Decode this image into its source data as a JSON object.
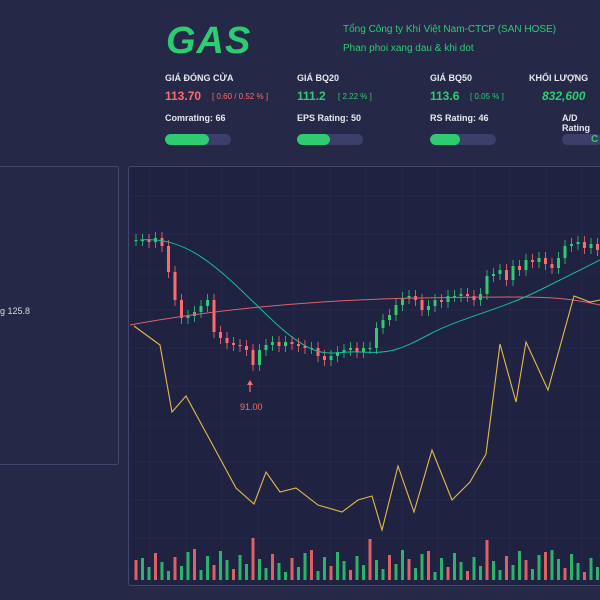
{
  "header": {
    "ticker": "GAS",
    "company": "Tổng Công ty Khí Việt Nam-CTCP (SAN HOSE)",
    "sector": "Phan phoi xang dau & khi dot"
  },
  "metrics": [
    {
      "label": "GIÁ ĐÓNG CỬA",
      "value": "113.70",
      "change": "[ 0.60 / 0.52 % ]",
      "color": "#ff6b6b"
    },
    {
      "label": "GIÁ BQ20",
      "value": "111.2",
      "change": "[ 2.22 % ]",
      "color": "#2ecc71"
    },
    {
      "label": "GIÁ BQ50",
      "value": "113.6",
      "change": "[ 0.05 % ]",
      "color": "#2ecc71"
    },
    {
      "label": "KHỐI LƯỢNG",
      "value": "832,600",
      "change": "",
      "color": "#2ecc71"
    }
  ],
  "ratings": [
    {
      "label": "Comrating: 66",
      "level": 0.66
    },
    {
      "label": "EPS Rating: 50",
      "level": 0.5
    },
    {
      "label": "RS Rating: 46",
      "level": 0.46
    },
    {
      "label": "A/D Rating",
      "level": 0
    }
  ],
  "ad_rating_visible_text": "C",
  "left_panel": {
    "note": "g 125.8"
  },
  "chart_data": {
    "type": "line",
    "low_marker_label": "91.00",
    "colors": {
      "up": "#2ecc71",
      "down": "#ff6b6b",
      "ma_short": "#1abc9c",
      "ma_long": "#e0606e",
      "rs_line": "#e6b84b"
    }
  }
}
